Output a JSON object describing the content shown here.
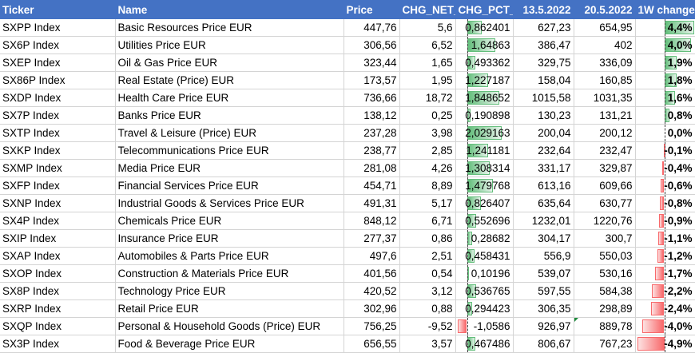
{
  "headers": [
    "Ticker",
    "Name",
    "Price",
    "CHG_NET_",
    "CHG_PCT_",
    "13.5.2022",
    "20.5.2022",
    "1W change"
  ],
  "rows": [
    {
      "ticker": "SXPP Index",
      "name": "Basic Resources Price EUR",
      "price": "447,76",
      "chg_net": "5,6",
      "chg_pct": "0,862401",
      "d1": "627,23",
      "d2": "654,95",
      "week": "4,4%",
      "chg_pct_v": 0.862401,
      "week_v": 4.4
    },
    {
      "ticker": "SX6P Index",
      "name": "Utilities Price EUR",
      "price": "306,56",
      "chg_net": "6,52",
      "chg_pct": "1,64863",
      "d1": "386,47",
      "d2": "402",
      "week": "4,0%",
      "chg_pct_v": 1.64863,
      "week_v": 4.0
    },
    {
      "ticker": "SXEP Index",
      "name": "Oil & Gas Price EUR",
      "price": "323,44",
      "chg_net": "1,65",
      "chg_pct": "0,493362",
      "d1": "329,75",
      "d2": "336,09",
      "week": "1,9%",
      "chg_pct_v": 0.493362,
      "week_v": 1.9
    },
    {
      "ticker": "SX86P Index",
      "name": "Real Estate (Price) EUR",
      "price": "173,57",
      "chg_net": "1,95",
      "chg_pct": "1,227187",
      "d1": "158,04",
      "d2": "160,85",
      "week": "1,8%",
      "chg_pct_v": 1.227187,
      "week_v": 1.8
    },
    {
      "ticker": "SXDP Index",
      "name": "Health Care Price EUR",
      "price": "736,66",
      "chg_net": "18,72",
      "chg_pct": "1,848652",
      "d1": "1015,58",
      "d2": "1031,35",
      "week": "1,6%",
      "chg_pct_v": 1.848652,
      "week_v": 1.6
    },
    {
      "ticker": "SX7P Index",
      "name": "Banks Price EUR",
      "price": "138,12",
      "chg_net": "0,25",
      "chg_pct": "0,190898",
      "d1": "130,23",
      "d2": "131,21",
      "week": "0,8%",
      "chg_pct_v": 0.190898,
      "week_v": 0.8
    },
    {
      "ticker": "SXTP Index",
      "name": "Travel & Leisure (Price) EUR",
      "price": "237,28",
      "chg_net": "3,98",
      "chg_pct": "2,029163",
      "d1": "200,04",
      "d2": "200,12",
      "week": "0,0%",
      "chg_pct_v": 2.029163,
      "week_v": 0.0
    },
    {
      "ticker": "SXKP Index",
      "name": "Telecommunications Price EUR",
      "price": "238,77",
      "chg_net": "2,85",
      "chg_pct": "1,241181",
      "d1": "232,64",
      "d2": "232,47",
      "week": "-0,1%",
      "chg_pct_v": 1.241181,
      "week_v": -0.1
    },
    {
      "ticker": "SXMP Index",
      "name": "Media Price EUR",
      "price": "281,08",
      "chg_net": "4,26",
      "chg_pct": "1,308314",
      "d1": "331,17",
      "d2": "329,87",
      "week": "-0,4%",
      "chg_pct_v": 1.308314,
      "week_v": -0.4
    },
    {
      "ticker": "SXFP Index",
      "name": "Financial Services Price EUR",
      "price": "454,71",
      "chg_net": "8,89",
      "chg_pct": "1,479768",
      "d1": "613,16",
      "d2": "609,66",
      "week": "-0,6%",
      "chg_pct_v": 1.479768,
      "week_v": -0.6
    },
    {
      "ticker": "SXNP Index",
      "name": "Industrial Goods & Services Price EUR",
      "price": "491,31",
      "chg_net": "5,17",
      "chg_pct": "0,826407",
      "d1": "635,64",
      "d2": "630,77",
      "week": "-0,8%",
      "chg_pct_v": 0.826407,
      "week_v": -0.8
    },
    {
      "ticker": "SX4P Index",
      "name": "Chemicals Price EUR",
      "price": "848,12",
      "chg_net": "6,71",
      "chg_pct": "0,552696",
      "d1": "1232,01",
      "d2": "1220,76",
      "week": "-0,9%",
      "chg_pct_v": 0.552696,
      "week_v": -0.9
    },
    {
      "ticker": "SXIP Index",
      "name": "Insurance Price EUR",
      "price": "277,37",
      "chg_net": "0,86",
      "chg_pct": "0,28682",
      "d1": "304,17",
      "d2": "300,7",
      "week": "-1,1%",
      "chg_pct_v": 0.28682,
      "week_v": -1.1
    },
    {
      "ticker": "SXAP Index",
      "name": "Automobiles & Parts Price EUR",
      "price": "497,6",
      "chg_net": "2,51",
      "chg_pct": "0,458431",
      "d1": "556,9",
      "d2": "550,03",
      "week": "-1,2%",
      "chg_pct_v": 0.458431,
      "week_v": -1.2
    },
    {
      "ticker": "SXOP Index",
      "name": "Construction & Materials Price EUR",
      "price": "401,56",
      "chg_net": "0,54",
      "chg_pct": "0,10196",
      "d1": "539,07",
      "d2": "530,16",
      "week": "-1,7%",
      "chg_pct_v": 0.10196,
      "week_v": -1.7
    },
    {
      "ticker": "SX8P Index",
      "name": "Technology Price EUR",
      "price": "420,52",
      "chg_net": "3,12",
      "chg_pct": "0,536765",
      "d1": "597,55",
      "d2": "584,38",
      "week": "-2,2%",
      "chg_pct_v": 0.536765,
      "week_v": -2.2
    },
    {
      "ticker": "SXRP Index",
      "name": "Retail Price EUR",
      "price": "302,96",
      "chg_net": "0,88",
      "chg_pct": "0,294423",
      "d1": "306,35",
      "d2": "298,89",
      "week": "-2,4%",
      "chg_pct_v": 0.294423,
      "week_v": -2.4
    },
    {
      "ticker": "SXQP Index",
      "name": "Personal & Household Goods (Price) EUR",
      "price": "756,25",
      "chg_net": "-9,52",
      "chg_pct": "-1,0586",
      "d1": "926,97",
      "d2": "889,78",
      "week": "-4,0%",
      "chg_pct_v": -1.0586,
      "week_v": -4.0
    },
    {
      "ticker": "SX3P Index",
      "name": "Food & Beverage Price EUR",
      "price": "656,55",
      "chg_net": "3,57",
      "chg_pct": "0,467486",
      "d1": "806,67",
      "d2": "767,23",
      "week": "-4,9%",
      "chg_pct_v": 0.467486,
      "week_v": -4.9
    }
  ],
  "colors": {
    "header_bg": "#4472c4",
    "positive_bar": "#63be7b",
    "negative_bar": "#f8696b"
  }
}
